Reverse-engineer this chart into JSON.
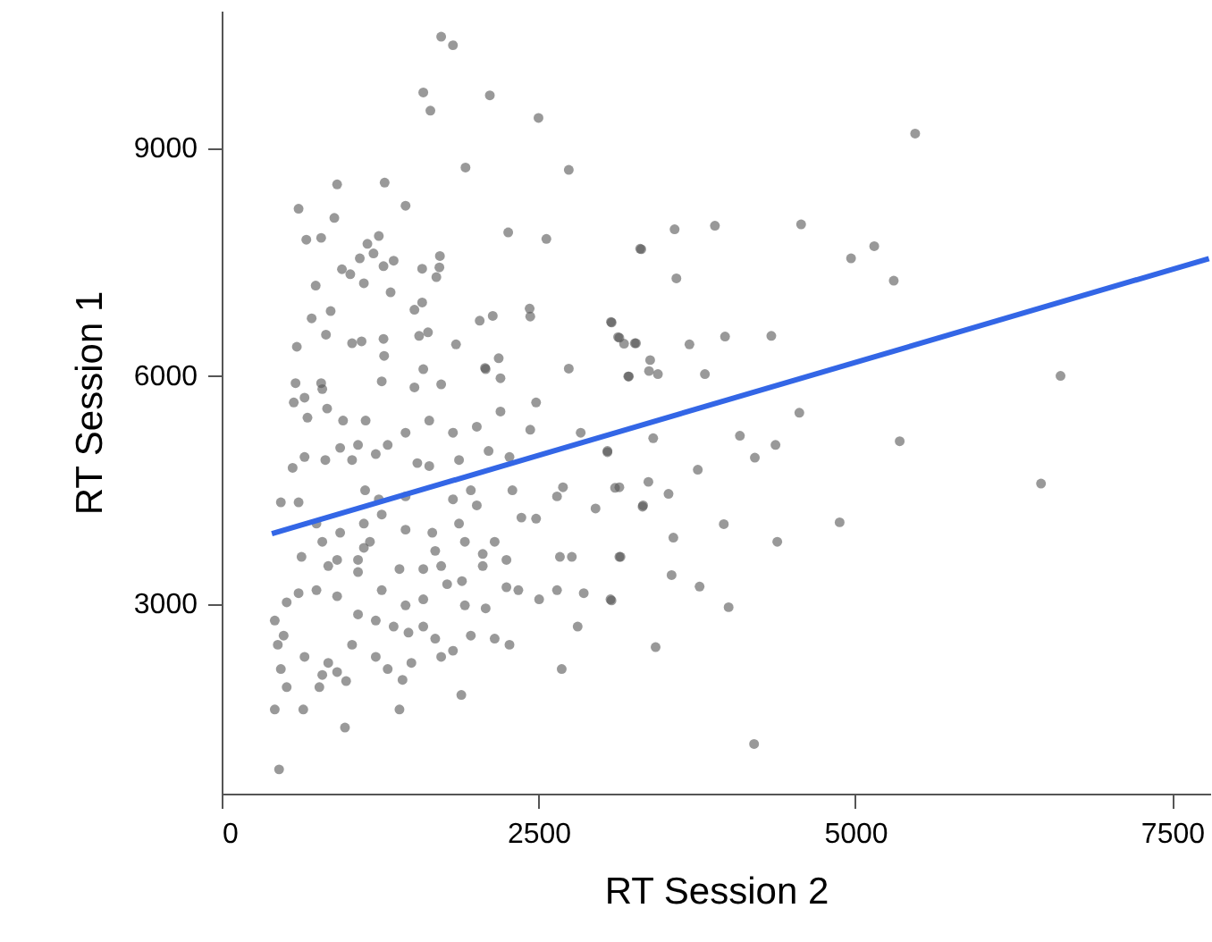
{
  "chart_data": {
    "type": "scatter",
    "xlabel": "RT Session 2",
    "ylabel": "RT Session 1",
    "xlim": [
      0,
      7800
    ],
    "ylim": [
      500,
      10800
    ],
    "xticks": [
      0,
      2500,
      5000,
      7500
    ],
    "yticks": [
      3000,
      6000,
      9000
    ],
    "grid": false,
    "marker": "circle",
    "series": [
      {
        "color": "#555555",
        "x": [
          1732,
          1825,
          1591,
          2116,
          1647,
          2500,
          1924,
          2739,
          911,
          1286,
          607,
          1451,
          889,
          668,
          785,
          2261,
          2562,
          3302,
          1150,
          1240,
          1090,
          1198,
          1357,
          1277,
          949,
          1015,
          1582,
          1722,
          1718,
          1694,
          1122,
          742,
          1333,
          1521,
          1582,
          860,
          710,
          2036,
          2139,
          2430,
          2435,
          3077,
          3138,
          3260,
          593,
          823,
          1029,
          1104,
          1277,
          1282,
          1558,
          1628,
          1849,
          2186,
          2739,
          3213,
          2078,
          583,
          785,
          794,
          569,
          654,
          677,
          832,
          958,
          1136,
          1263,
          1521,
          1591,
          1732,
          2083,
          2200,
          2481,
          2435,
          2200,
          2013,
          1825,
          1638,
          1451,
          1310,
          1076,
          935,
          654,
          560,
          818,
          1029,
          1216,
          1544,
          1638,
          1873,
          2106,
          2271,
          2833,
          3044,
          3138,
          3325,
          2950,
          2693,
          2646,
          2481,
          2365,
          2294,
          2013,
          1966,
          1825,
          1662,
          1873,
          1685,
          1451,
          1263,
          1122,
          1170,
          1076,
          911,
          794,
          748,
          467,
          607,
          630,
          513,
          607,
          748,
          911,
          1076,
          1263,
          1451,
          1591,
          1779,
          1896,
          2060,
          2083,
          1919,
          2247,
          2341,
          2505,
          2646,
          2857,
          3068,
          2809,
          2669,
          2763,
          3138,
          419,
          489,
          443,
          467,
          513,
          654,
          794,
          771,
          911,
          982,
          841,
          1029,
          1216,
          1310,
          1497,
          1427,
          1685,
          1732,
          1825,
          1966,
          2154,
          2271,
          1357,
          1474,
          1591,
          1076,
          1216,
          419,
          644,
          1403,
          1891,
          973,
          453,
          2683,
          1132,
          1240,
          1451,
          1122,
          935,
          841,
          1403,
          1591,
          1732,
          1919,
          2060,
          2154,
          2247,
          5472,
          3574,
          3892,
          4572,
          3311,
          3588,
          4966,
          5149,
          5303,
          3072,
          3128,
          3175,
          3269,
          3381,
          3372,
          3442,
          3208,
          3691,
          3972,
          4337,
          3813,
          6619,
          4558,
          3405,
          4089,
          4370,
          4207,
          5350,
          3044,
          3757,
          3367,
          3104,
          3526,
          3321,
          6465,
          3962,
          4876,
          3564,
          4384,
          3147,
          3550,
          3771,
          3076,
          4000,
          3424,
          4201
        ],
        "values": [
          10458,
          10346,
          9725,
          9686,
          9485,
          9390,
          8737,
          8706,
          8515,
          8539,
          8195,
          8235,
          8075,
          7788,
          7812,
          7884,
          7798,
          7669,
          7733,
          7836,
          7542,
          7607,
          7511,
          7439,
          7399,
          7334,
          7406,
          7573,
          7423,
          7296,
          7215,
          7184,
          7096,
          6866,
          6962,
          6849,
          6753,
          6722,
          6785,
          6881,
          6777,
          6698,
          6498,
          6426,
          6379,
          6538,
          6426,
          6450,
          6483,
          6259,
          6522,
          6570,
          6411,
          6228,
          6091,
          5989,
          6101,
          5901,
          5901,
          5822,
          5647,
          5709,
          5446,
          5566,
          5408,
          5408,
          5924,
          5845,
          6084,
          5885,
          6084,
          5965,
          5647,
          5288,
          5527,
          5327,
          5248,
          5408,
          5248,
          5088,
          5088,
          5049,
          4929,
          4786,
          4889,
          4889,
          4968,
          4849,
          4810,
          4889,
          5009,
          4929,
          5248,
          5009,
          4531,
          4292,
          4252,
          4531,
          4411,
          4118,
          4132,
          4491,
          4292,
          4491,
          4372,
          3933,
          4053,
          3694,
          3973,
          4172,
          4053,
          3814,
          3575,
          3575,
          3814,
          4053,
          4332,
          4332,
          3615,
          3017,
          3137,
          3177,
          3097,
          3415,
          3177,
          2977,
          3057,
          3256,
          3296,
          3495,
          2937,
          2977,
          3216,
          3177,
          3057,
          3177,
          3137,
          3057,
          2698,
          3615,
          3615,
          3615,
          2778,
          2579,
          2459,
          2140,
          1901,
          2300,
          2061,
          1901,
          2100,
          1981,
          2220,
          2459,
          2300,
          2140,
          2220,
          1997,
          2539,
          2300,
          2380,
          2579,
          2539,
          2459,
          2698,
          2619,
          2698,
          2858,
          2778,
          1608,
          1608,
          1608,
          1799,
          1369,
          819,
          2140,
          4491,
          4372,
          4411,
          3734,
          3933,
          3495,
          3455,
          3455,
          3495,
          3814,
          3654,
          3814,
          3575,
          9184,
          7924,
          7972,
          7989,
          7662,
          7279,
          7542,
          7702,
          7248,
          6706,
          6507,
          6419,
          6426,
          6204,
          6060,
          6020,
          5989,
          6411,
          6514,
          6522,
          6020,
          5996,
          5511,
          5176,
          5208,
          5088,
          4920,
          5136,
          4992,
          4762,
          4602,
          4523,
          4444,
          4275,
          4579,
          4046,
          4070,
          3868,
          3814,
          3615,
          3376,
          3224,
          3041,
          2953,
          2428,
          1153
        ]
      },
      {
        "type": "line",
        "color": "#3366e6",
        "x": [
          396,
          7790
        ],
        "values": [
          3920,
          7540
        ],
        "line_style": "solid",
        "marker": "none"
      }
    ]
  }
}
